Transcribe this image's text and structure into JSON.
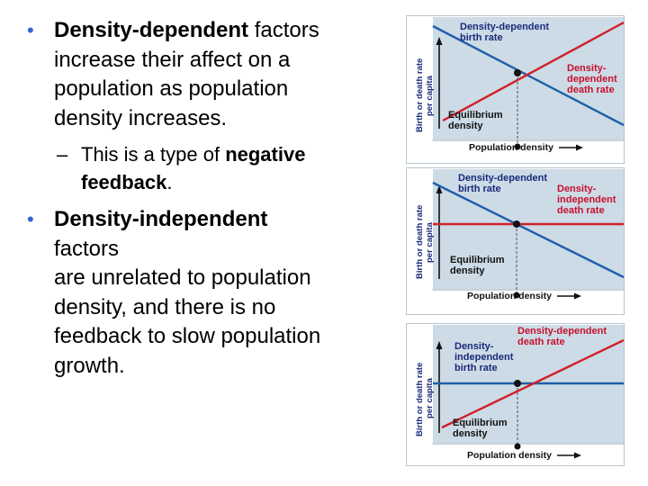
{
  "bullets": [
    {
      "bold": "Density-dependent",
      "text": " factors",
      "lines": [
        "increase their affect on a",
        "population as population",
        "density increases."
      ],
      "sub": {
        "text": "This is a type of ",
        "bold": "negative",
        "line2_bold": "feedback",
        "line2_end": "."
      }
    },
    {
      "bold": "Density-independent",
      "lines": [
        "factors",
        "are unrelated to population",
        "density, and there is no",
        "feedback to slow population",
        "growth."
      ]
    }
  ],
  "dash": "–",
  "axis": {
    "y_label_1": "Birth or death rate",
    "y_label_2": "per capita",
    "x_label": "Population density"
  },
  "panels": [
    {
      "birth_label": [
        "Density-dependent",
        "birth rate"
      ],
      "death_label": [
        "Density-",
        "dependent",
        "death rate"
      ],
      "eq_label": [
        "Equilibrium",
        "density"
      ]
    },
    {
      "birth_label": [
        "Density-dependent",
        "birth rate"
      ],
      "death_label": [
        "Density-",
        "independent",
        "death rate"
      ],
      "eq_label": [
        "Equilibrium",
        "density"
      ]
    },
    {
      "birth_label": [
        "Density-",
        "independent",
        "birth rate"
      ],
      "death_label": [
        "Density-dependent",
        "death rate"
      ],
      "eq_label": [
        "Equilibrium",
        "density"
      ]
    }
  ],
  "colors": {
    "bullet": "#3366cc",
    "panel_bg": "#ccdbe6",
    "birth_line": "#1f5fa8",
    "death_line": "#d0202a",
    "label_blue": "#1a2a7a",
    "label_red": "#c8102e"
  }
}
